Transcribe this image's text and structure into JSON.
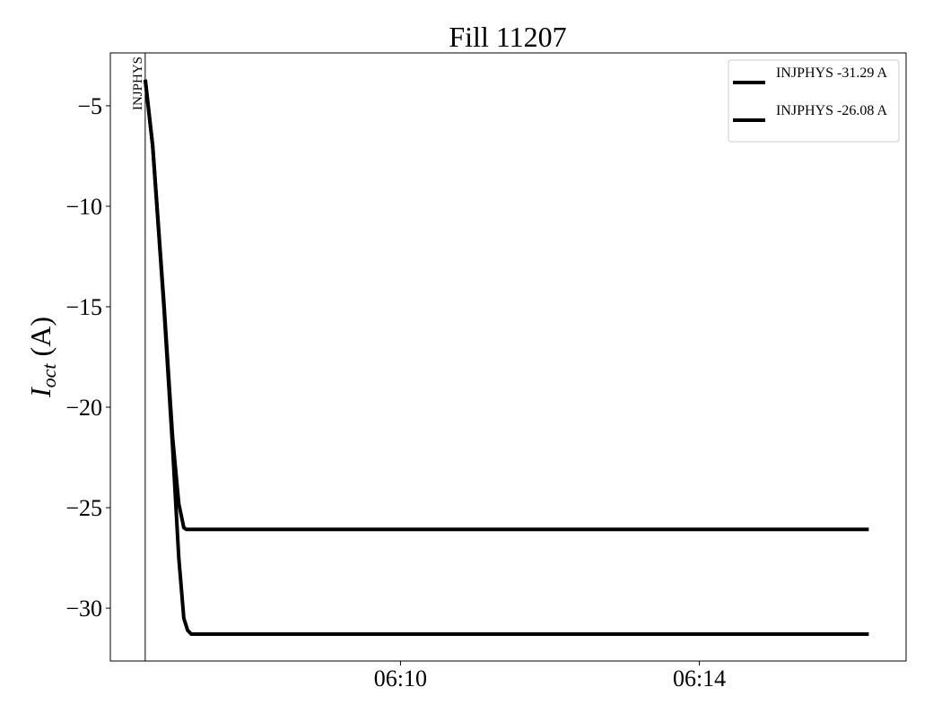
{
  "chart_data": {
    "type": "line",
    "title": "Fill 11207",
    "ylabel_main": "I",
    "ylabel_sub": "oct",
    "ylabel_unit": " (A)",
    "xlabel": "",
    "xlim": [
      "06:06:07",
      "06:16:46"
    ],
    "ylim": [
      -32.63,
      -2.37
    ],
    "xticks": [
      "06:10",
      "06:14"
    ],
    "yticks": [
      -5,
      -10,
      -15,
      -20,
      -25,
      -30
    ],
    "ytick_labels": [
      "−5",
      "−10",
      "−15",
      "−20",
      "−25",
      "−30"
    ],
    "grid": false,
    "legend_position": "top-right",
    "annotation": {
      "time": "06:06:35",
      "label": "INJPHYS"
    },
    "series": [
      {
        "name": "INJPHYS -31.29 A",
        "color": "#000000",
        "x": [
          "06:06:35",
          "06:06:41",
          "06:06:50",
          "06:06:57",
          "06:07:02",
          "06:07:06",
          "06:07:09",
          "06:07:12",
          "06:16:16"
        ],
        "y": [
          -3.7,
          -7.0,
          -15.0,
          -22.0,
          -27.5,
          -30.5,
          -31.1,
          -31.29,
          -31.29
        ]
      },
      {
        "name": "INJPHYS -26.08 A",
        "color": "#000000",
        "x": [
          "06:06:35",
          "06:06:41",
          "06:06:50",
          "06:06:57",
          "06:07:02",
          "06:07:06",
          "06:07:08",
          "06:16:16"
        ],
        "y": [
          -3.7,
          -7.0,
          -14.8,
          -21.5,
          -24.8,
          -26.0,
          -26.08,
          -26.08
        ]
      }
    ]
  }
}
